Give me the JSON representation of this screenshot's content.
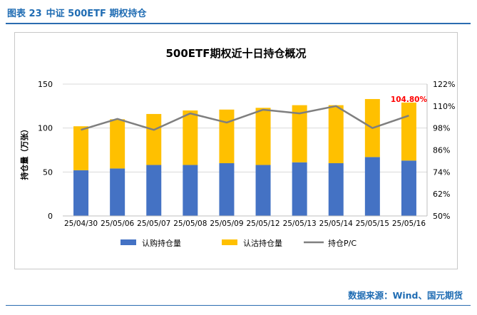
{
  "caption": {
    "figure_no": "图表 23",
    "title": "中证 500ETF 期权持仓"
  },
  "source": "数据来源：Wind、国元期货",
  "colors": {
    "call": "#4472c4",
    "put": "#ffc000",
    "pc_line": "#7f7f7f",
    "highlight_label": "#ff0000",
    "caption": "#1f6cb3"
  },
  "chart_data": {
    "type": "bar",
    "stacked": true,
    "title": "500ETF期权近十日持仓概况",
    "ylabel": "持仓量（万张）",
    "xlabel": "",
    "categories": [
      "25/04/30",
      "25/05/06",
      "25/05/07",
      "25/05/08",
      "25/05/09",
      "25/05/12",
      "25/05/13",
      "25/05/14",
      "25/05/15",
      "25/05/16"
    ],
    "series": [
      {
        "name": "认购持仓量",
        "axis": "left",
        "kind": "bar",
        "values": [
          52,
          54,
          58,
          58,
          60,
          58,
          61,
          60,
          67,
          63
        ]
      },
      {
        "name": "认沽持仓量",
        "axis": "left",
        "kind": "bar",
        "values": [
          50,
          56,
          58,
          62,
          61,
          65,
          65,
          66,
          66,
          66
        ]
      },
      {
        "name": "持仓P/C",
        "axis": "right",
        "kind": "line",
        "values": [
          97,
          103,
          97,
          106,
          101,
          108,
          106,
          110,
          98,
          104.8
        ]
      }
    ],
    "ylim": [
      0,
      150
    ],
    "yticks": [
      0,
      50,
      100,
      150
    ],
    "y2lim": [
      50,
      122
    ],
    "y2ticks": [
      "50%",
      "62%",
      "74%",
      "86%",
      "98%",
      "110%",
      "122%"
    ],
    "annotation": {
      "text": "104.80%",
      "index": 9
    },
    "legend_position": "bottom",
    "grid": "horizontal"
  }
}
